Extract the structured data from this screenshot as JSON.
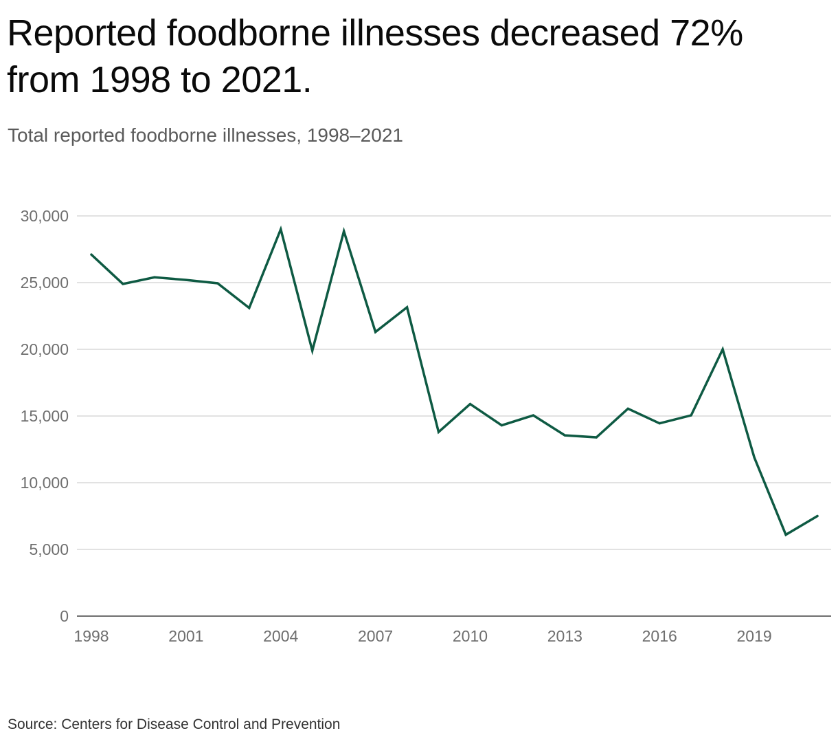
{
  "header": {
    "title": "Reported foodborne illnesses decreased 72% from 1998 to 2021.",
    "subtitle": "Total reported foodborne illnesses, 1998–2021"
  },
  "footer": {
    "source": "Source: Centers for Disease Control and Prevention"
  },
  "colors": {
    "line": "#0e5a43",
    "grid": "#d9d9d9",
    "axis": "#6f6f6f"
  },
  "chart_data": {
    "type": "line",
    "title": "Reported foodborne illnesses decreased 72% from 1998 to 2021.",
    "subtitle": "Total reported foodborne illnesses, 1998–2021",
    "xlabel": "",
    "ylabel": "",
    "x": [
      1998,
      1999,
      2000,
      2001,
      2002,
      2003,
      2004,
      2005,
      2006,
      2007,
      2008,
      2009,
      2010,
      2011,
      2012,
      2013,
      2014,
      2015,
      2016,
      2017,
      2018,
      2019,
      2020,
      2021
    ],
    "series": [
      {
        "values": [
          27100,
          24900,
          25400,
          25200,
          24950,
          23100,
          29000,
          19900,
          28850,
          21300,
          23150,
          13800,
          15900,
          14300,
          15050,
          13550,
          13400,
          15550,
          14450,
          15050,
          20000,
          11900,
          6100,
          7500
        ]
      }
    ],
    "xlim": [
      1998,
      2021
    ],
    "ylim": [
      0,
      30000
    ],
    "x_ticks": [
      "1998",
      "2001",
      "2004",
      "2007",
      "2010",
      "2013",
      "2016",
      "2019"
    ],
    "y_ticks": [
      "0",
      "5,000",
      "10,000",
      "15,000",
      "20,000",
      "25,000",
      "30,000"
    ],
    "grid": true,
    "legend": "none"
  }
}
